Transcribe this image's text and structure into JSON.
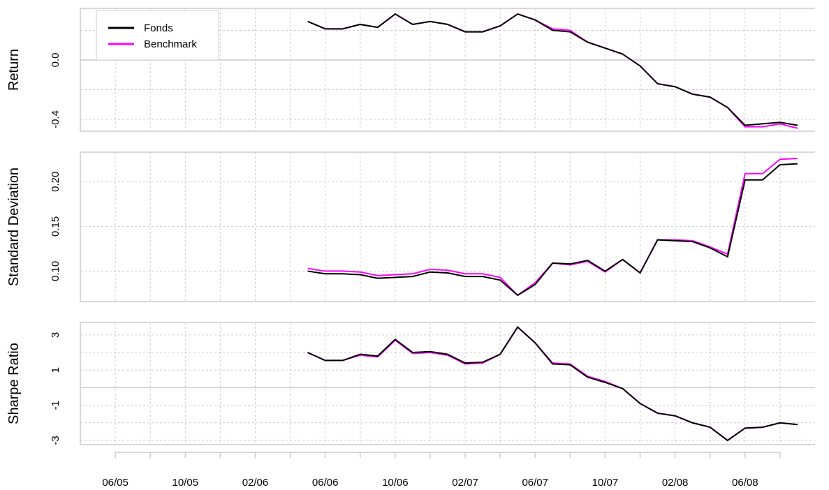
{
  "chart_data": [
    {
      "type": "line",
      "ylabel": "Return",
      "ylim": [
        -0.48,
        0.348
      ],
      "yticks": [
        {
          "value": 0,
          "label": "0.0"
        },
        {
          "value": -0.4,
          "label": "-0.4"
        }
      ],
      "ygrid": [
        -0.4,
        -0.2,
        0.2
      ],
      "zero_line": 0,
      "legend": "top-left",
      "x": [
        "05/06",
        "06/06",
        "07/06",
        "08/06",
        "09/06",
        "10/06",
        "11/06",
        "12/06",
        "01/07",
        "02/07",
        "03/07",
        "04/07",
        "05/07",
        "06/07",
        "07/07",
        "08/07",
        "09/07",
        "10/07",
        "11/07",
        "12/07",
        "01/08",
        "02/08",
        "03/08",
        "04/08",
        "05/08",
        "06/08",
        "07/08",
        "08/08",
        "09/08"
      ],
      "series": [
        {
          "name": "Fonds",
          "color": "#000000",
          "values": [
            0.26,
            0.21,
            0.21,
            0.24,
            0.22,
            0.31,
            0.24,
            0.26,
            0.24,
            0.19,
            0.19,
            0.23,
            0.31,
            0.27,
            0.2,
            0.19,
            0.12,
            0.08,
            0.04,
            -0.04,
            -0.16,
            -0.18,
            -0.23,
            -0.25,
            -0.32,
            -0.44,
            -0.43,
            -0.42,
            -0.44
          ]
        },
        {
          "name": "Benchmark",
          "color": "#ff00ff",
          "values": [
            0.26,
            0.21,
            0.21,
            0.24,
            0.22,
            0.31,
            0.24,
            0.26,
            0.24,
            0.19,
            0.19,
            0.23,
            0.31,
            0.27,
            0.21,
            0.2,
            0.12,
            0.08,
            0.04,
            -0.04,
            -0.16,
            -0.18,
            -0.23,
            -0.25,
            -0.32,
            -0.45,
            -0.45,
            -0.43,
            -0.46
          ]
        }
      ]
    },
    {
      "type": "line",
      "ylabel": "Standard Deviation",
      "ylim": [
        0.066,
        0.233
      ],
      "yticks": [
        {
          "value": 0.1,
          "label": "0.10"
        },
        {
          "value": 0.15,
          "label": "0.15"
        },
        {
          "value": 0.2,
          "label": "0.20"
        }
      ],
      "x": [
        "05/06",
        "06/06",
        "07/06",
        "08/06",
        "09/06",
        "10/06",
        "11/06",
        "12/06",
        "01/07",
        "02/07",
        "03/07",
        "04/07",
        "05/07",
        "06/07",
        "07/07",
        "08/07",
        "09/07",
        "10/07",
        "11/07",
        "12/07",
        "01/08",
        "02/08",
        "03/08",
        "04/08",
        "05/08",
        "06/08",
        "07/08",
        "08/08",
        "09/08"
      ],
      "series": [
        {
          "name": "Fonds",
          "color": "#000000",
          "values": [
            0.1,
            0.097,
            0.097,
            0.096,
            0.092,
            0.093,
            0.094,
            0.099,
            0.098,
            0.094,
            0.094,
            0.09,
            0.073,
            0.085,
            0.109,
            0.108,
            0.112,
            0.1,
            0.113,
            0.098,
            0.135,
            0.134,
            0.133,
            0.126,
            0.116,
            0.202,
            0.202,
            0.219,
            0.22
          ]
        },
        {
          "name": "Benchmark",
          "color": "#ff00ff",
          "values": [
            0.103,
            0.1,
            0.1,
            0.099,
            0.095,
            0.096,
            0.097,
            0.102,
            0.101,
            0.097,
            0.097,
            0.093,
            0.073,
            0.087,
            0.109,
            0.107,
            0.111,
            0.099,
            0.113,
            0.098,
            0.135,
            0.135,
            0.134,
            0.127,
            0.119,
            0.209,
            0.209,
            0.225,
            0.226
          ]
        }
      ]
    },
    {
      "type": "line",
      "ylabel": "Sharpe Ratio",
      "ylim": [
        -3.24,
        3.71
      ],
      "yticks": [
        -3,
        -1,
        1,
        3
      ],
      "ygrid": [
        -2,
        2
      ],
      "zero_line": 0,
      "xlim": [
        "04/05",
        "10/08"
      ],
      "xticks": [
        "06/05",
        "10/05",
        "02/06",
        "06/06",
        "10/06",
        "02/07",
        "06/07",
        "10/07",
        "02/08",
        "06/08"
      ],
      "xminorticks": [
        "08/05",
        "12/05",
        "04/06",
        "08/06",
        "12/06",
        "04/07",
        "08/07",
        "12/07",
        "04/08",
        "08/08"
      ],
      "x": [
        "05/06",
        "06/06",
        "07/06",
        "08/06",
        "09/06",
        "10/06",
        "11/06",
        "12/06",
        "01/07",
        "02/07",
        "03/07",
        "04/07",
        "05/07",
        "06/07",
        "07/07",
        "08/07",
        "09/07",
        "10/07",
        "11/07",
        "12/07",
        "01/08",
        "02/08",
        "03/08",
        "04/08",
        "05/08",
        "06/08",
        "07/08",
        "08/08",
        "09/08"
      ],
      "series": [
        {
          "name": "Fonds",
          "color": "#000000",
          "values": [
            2.0,
            1.55,
            1.55,
            1.9,
            1.8,
            2.75,
            2.0,
            2.05,
            1.9,
            1.4,
            1.45,
            1.9,
            3.45,
            2.55,
            1.35,
            1.3,
            0.6,
            0.3,
            -0.05,
            -0.9,
            -1.45,
            -1.6,
            -2.0,
            -2.25,
            -3.0,
            -2.3,
            -2.25,
            -2.0,
            -2.1
          ]
        },
        {
          "name": "Benchmark",
          "color": "#ff00ff",
          "values": [
            2.0,
            1.55,
            1.55,
            1.85,
            1.75,
            2.7,
            1.95,
            2.0,
            1.85,
            1.35,
            1.4,
            1.9,
            3.45,
            2.55,
            1.4,
            1.35,
            0.65,
            0.35,
            -0.05,
            -0.9,
            -1.45,
            -1.6,
            -2.0,
            -2.25,
            -3.0,
            -2.3,
            -2.25,
            -2.0,
            -2.1
          ]
        }
      ]
    }
  ]
}
